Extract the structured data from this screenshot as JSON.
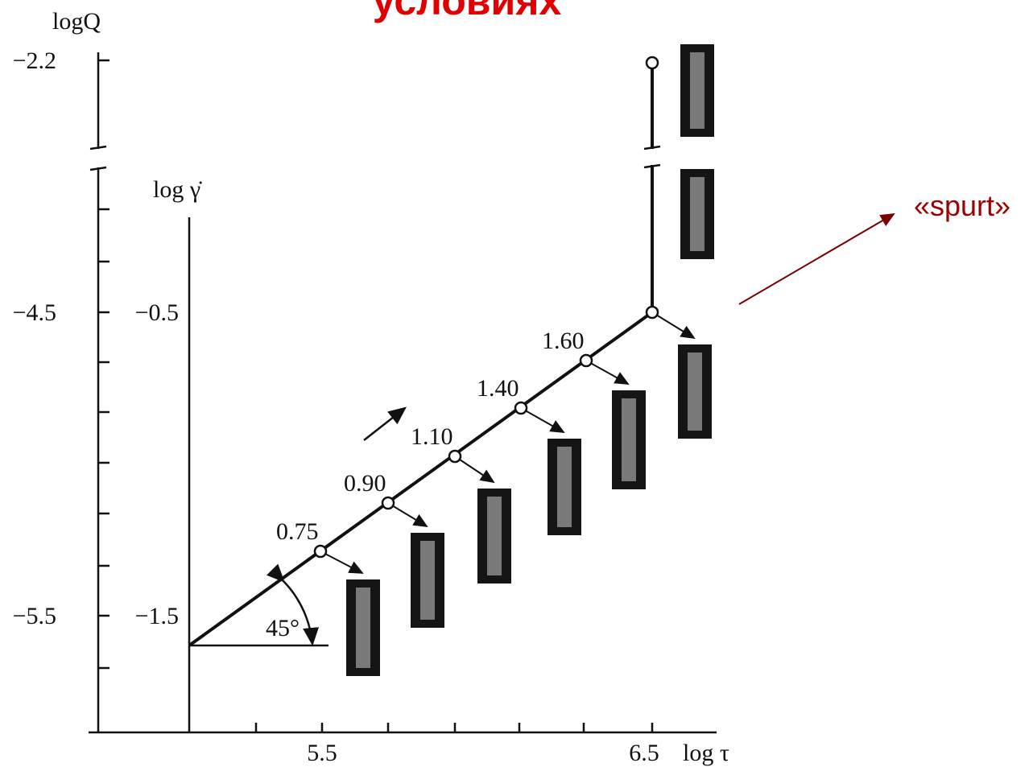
{
  "header": {
    "title": "условиях"
  },
  "axes": {
    "q_label": "logQ",
    "gamma_label": "log γ̇",
    "tau_label": "log τ",
    "q_ticks": [
      "−2.2",
      "−4.5",
      "−5.5"
    ],
    "gamma_ticks": [
      "−0.5",
      "−1.5"
    ],
    "tau_ticks": [
      "5.5",
      "6.5"
    ]
  },
  "points": [
    "0.75",
    "0.90",
    "1.10",
    "1.40",
    "1.60"
  ],
  "angle": "45°",
  "annotation": "«spurt»"
}
